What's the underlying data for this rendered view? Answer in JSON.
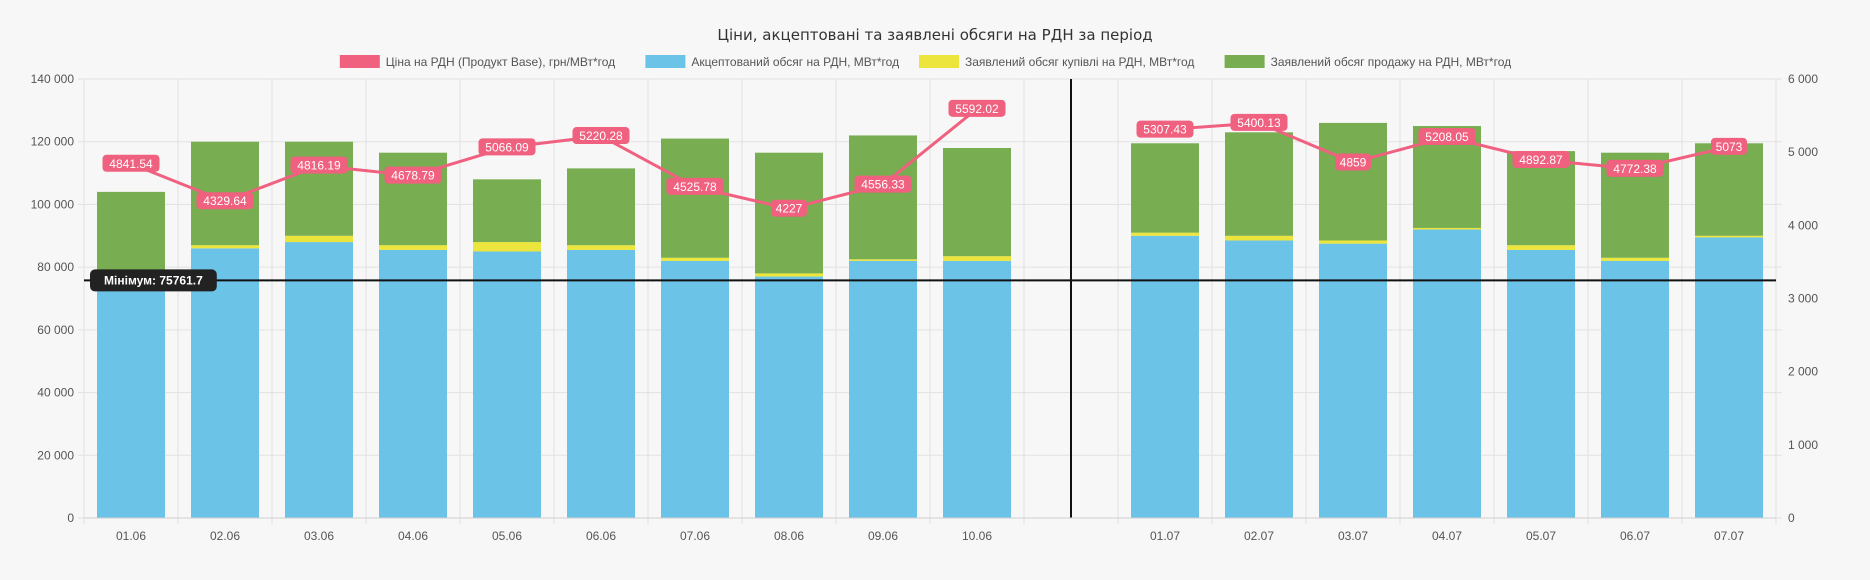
{
  "chart_data": {
    "type": "bar",
    "title": "Ціни, акцептовані та заявлені обсяги на РДН за період",
    "categories": [
      "01.06",
      "02.06",
      "03.06",
      "04.06",
      "05.06",
      "06.06",
      "07.06",
      "08.06",
      "09.06",
      "10.06",
      "",
      "01.07",
      "02.07",
      "03.07",
      "04.07",
      "05.07",
      "06.07",
      "07.07"
    ],
    "left_axis": {
      "min": 0,
      "max": 140000,
      "ticks": [
        "0",
        "20 000",
        "40 000",
        "60 000",
        "80 000",
        "100 000",
        "120 000",
        "140 000"
      ]
    },
    "right_axis": {
      "min": 0,
      "max": 6000,
      "ticks": [
        "0",
        "1 000",
        "2 000",
        "3 000",
        "4 000",
        "5 000",
        "6 000"
      ]
    },
    "stacked_bars": true,
    "grid": true,
    "legend_position": "top",
    "series": [
      {
        "name": "Ціна на РДН (Продукт Base), грн/МВт*год",
        "type": "line",
        "axis": "right",
        "color": "#f0607f",
        "values": [
          4841.54,
          4329.64,
          4816.19,
          4678.79,
          5066.09,
          5220.28,
          4525.78,
          4227,
          4556.33,
          5592.02,
          null,
          5307.43,
          5400.13,
          4859,
          5208.05,
          4892.87,
          4772.38,
          5073
        ],
        "labels": [
          "4841.54",
          "4329.64",
          "4816.19",
          "4678.79",
          "5066.09",
          "5220.28",
          "4525.78",
          "4227",
          "4556.33",
          "5592.02",
          "",
          "5307.43",
          "5400.13",
          "4859",
          "5208.05",
          "4892.87",
          "4772.38",
          "5073"
        ]
      },
      {
        "name": "Акцептований обсяг на РДН, МВт*год",
        "type": "bar",
        "axis": "left",
        "color": "#6cc3e8",
        "values": [
          75800,
          86000,
          88000,
          85500,
          85000,
          85500,
          82000,
          77000,
          82000,
          82000,
          null,
          90000,
          88500,
          87500,
          92000,
          85500,
          82000,
          89500
        ]
      },
      {
        "name": "Заявлений обсяг купівлі на РДН, МВт*год",
        "type": "bar",
        "axis": "left",
        "color": "#ece53d",
        "values": [
          0,
          1000,
          2000,
          1500,
          3000,
          1500,
          1000,
          1000,
          500,
          1500,
          null,
          1000,
          1500,
          1000,
          500,
          1500,
          1000,
          500
        ]
      },
      {
        "name": "Заявлений обсяг продажу на РДН, МВт*год",
        "type": "bar",
        "axis": "left",
        "color": "#79ad51",
        "values": [
          28200,
          33000,
          30000,
          29500,
          20000,
          24500,
          38000,
          38500,
          39500,
          34500,
          null,
          28500,
          33000,
          37500,
          32500,
          30000,
          33500,
          29500
        ]
      }
    ],
    "annotations": [
      {
        "type": "horizontal-line",
        "axis": "left",
        "value": 75761.7,
        "label": "Мінімум: 75761.7"
      },
      {
        "type": "vertical-line",
        "between": [
          "10.06",
          "01.07"
        ]
      }
    ]
  }
}
